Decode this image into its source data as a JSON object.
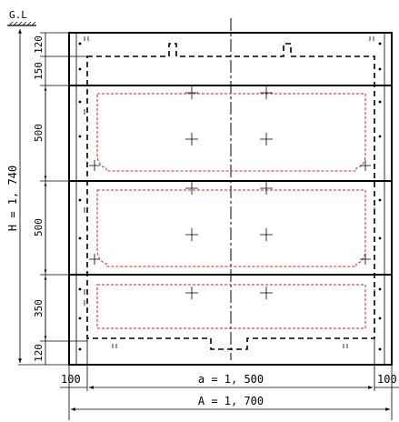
{
  "ground_label": "G.L",
  "vertical_dims": {
    "total": "H = 1, 740",
    "segments": [
      "120",
      "150",
      "500",
      "500",
      "350",
      "120"
    ]
  },
  "horizontal_dims": {
    "left_margin": "100",
    "inner_width": "a = 1, 500",
    "right_margin": "100",
    "total_width": "A = 1, 700"
  },
  "colors": {
    "line": "#000000",
    "red_outline": "#e0201c"
  }
}
